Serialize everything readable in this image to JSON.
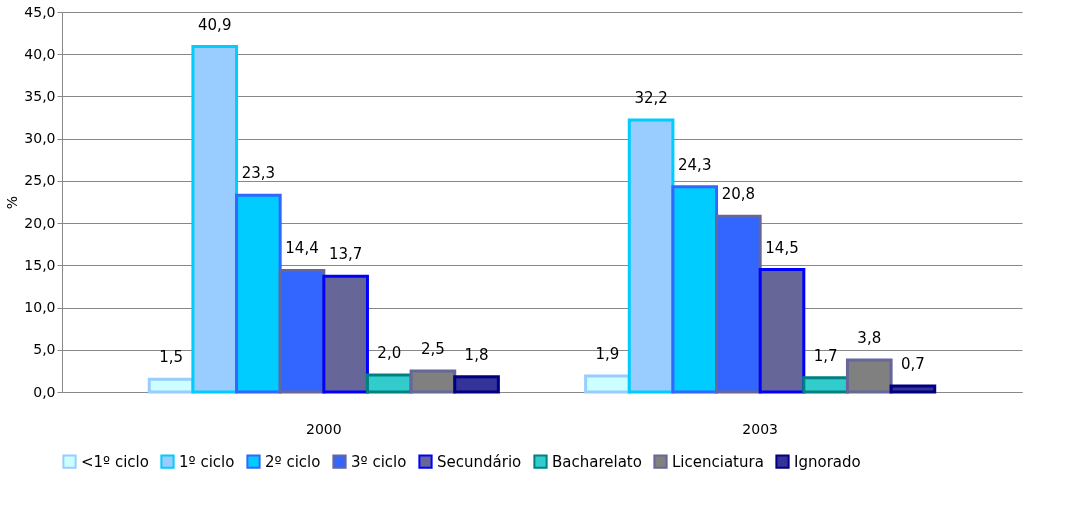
{
  "chart_data": {
    "type": "bar",
    "categories": [
      "2000",
      "2003"
    ],
    "ylabel": "%",
    "ylim": [
      0,
      45
    ],
    "yticks": [
      {
        "value": 0,
        "label": "0,0"
      },
      {
        "value": 5,
        "label": "5,0"
      },
      {
        "value": 10,
        "label": "10,0"
      },
      {
        "value": 15,
        "label": "15,0"
      },
      {
        "value": 20,
        "label": "20,0"
      },
      {
        "value": 25,
        "label": "25,0"
      },
      {
        "value": 30,
        "label": "30,0"
      },
      {
        "value": 35,
        "label": "35,0"
      },
      {
        "value": 40,
        "label": "40,0"
      },
      {
        "value": 45,
        "label": "45,0"
      }
    ],
    "series": [
      {
        "name": "<1º ciclo",
        "color": "#ccffff",
        "values": [
          1.5,
          1.9
        ],
        "value_labels": [
          "1,5",
          "1,9"
        ]
      },
      {
        "name": "1º ciclo",
        "color": "#99ccff",
        "values": [
          40.9,
          32.2
        ],
        "value_labels": [
          "40,9",
          "32,2"
        ]
      },
      {
        "name": "2º ciclo",
        "color": "#00ccff",
        "values": [
          23.3,
          24.3
        ],
        "value_labels": [
          "23,3",
          "24,3"
        ]
      },
      {
        "name": "3º ciclo",
        "color": "#3366ff",
        "values": [
          14.4,
          20.8
        ],
        "value_labels": [
          "14,4",
          "20,8"
        ]
      },
      {
        "name": "Secundário",
        "color": "#666699",
        "values": [
          13.7,
          14.5
        ],
        "value_labels": [
          "13,7",
          "14,5"
        ]
      },
      {
        "name": "Bacharelato",
        "color": "#33cccc",
        "values": [
          2.0,
          1.7
        ],
        "value_labels": [
          "2,0",
          "1,7"
        ]
      },
      {
        "name": "Licenciatura",
        "color": "#808080",
        "values": [
          2.5,
          3.8
        ],
        "value_labels": [
          "2,5",
          "3,8"
        ]
      },
      {
        "name": "Ignorado",
        "color": "#333399",
        "values": [
          1.8,
          0.7
        ],
        "value_labels": [
          "1,8",
          "0,7"
        ]
      }
    ],
    "grid": "y",
    "legend": "bottom"
  }
}
